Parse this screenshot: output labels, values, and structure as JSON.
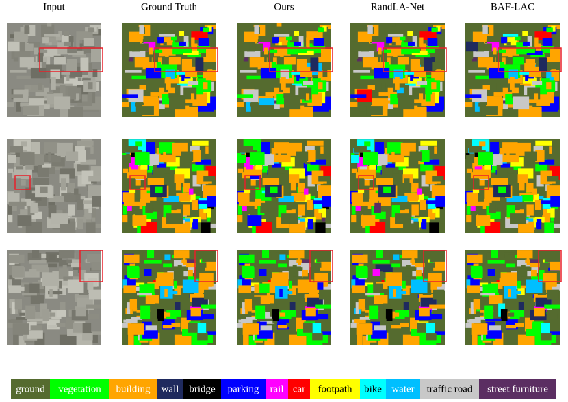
{
  "columns": [
    "Input",
    "Ground Truth",
    "Ours",
    "RandLA-Net",
    "BAF-LAC"
  ],
  "legend": [
    {
      "label": "ground",
      "color": "#556b2f"
    },
    {
      "label": "vegetation",
      "color": "#00ff00"
    },
    {
      "label": "building",
      "color": "#ffa500"
    },
    {
      "label": "wall",
      "color": "#1f2a5e"
    },
    {
      "label": "bridge",
      "color": "#000000"
    },
    {
      "label": "parking",
      "color": "#0000ff"
    },
    {
      "label": "rail",
      "color": "#ff00ff"
    },
    {
      "label": "car",
      "color": "#ff0000"
    },
    {
      "label": "footpath",
      "color": "#ffff00"
    },
    {
      "label": "bike",
      "color": "#00ffff"
    },
    {
      "label": "water",
      "color": "#00bfff"
    },
    {
      "label": "traffic road",
      "color": "#c8c8c8"
    },
    {
      "label": "street furniture",
      "color": "#5b2e62"
    }
  ]
}
